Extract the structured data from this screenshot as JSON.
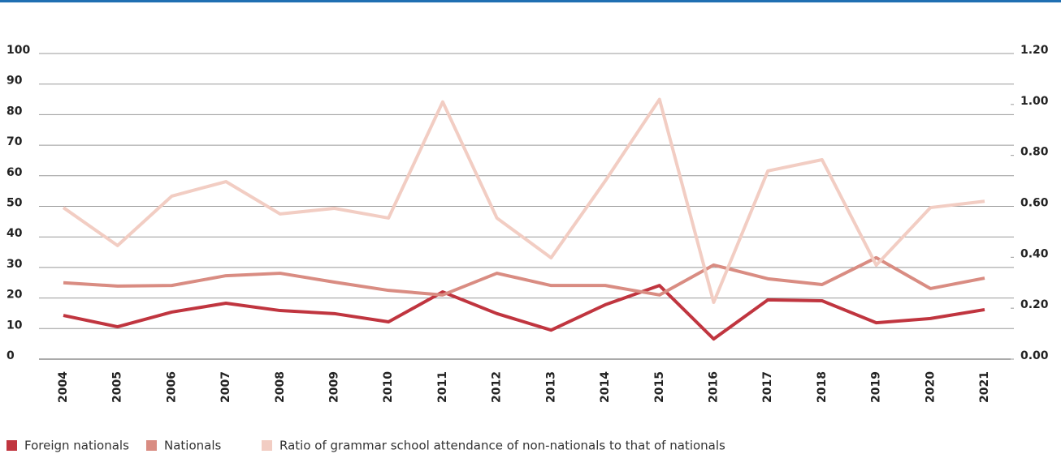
{
  "chart_data": {
    "type": "line",
    "categories": [
      "2004",
      "2005",
      "2006",
      "2007",
      "2008",
      "2009",
      "2010",
      "2011",
      "2012",
      "2013",
      "2014",
      "2015",
      "2016",
      "2017",
      "2018",
      "2019",
      "2020",
      "2021"
    ],
    "series": [
      {
        "name": "Foreign nationals",
        "color": "#c0353f",
        "values": [
          14.3,
          10.6,
          15.4,
          18.3,
          15.9,
          14.9,
          12.2,
          22.0,
          14.9,
          9.5,
          17.8,
          24.1,
          6.6,
          19.4,
          19.1,
          11.9,
          13.3,
          16.2
        ]
      },
      {
        "name": "Nationals",
        "color": "#d98c82",
        "values": [
          25.0,
          23.9,
          24.1,
          27.3,
          28.1,
          25.2,
          22.5,
          21.0,
          28.1,
          24.1,
          24.1,
          21.0,
          30.8,
          26.3,
          24.4,
          33.2,
          23.1,
          26.5
        ]
      },
      {
        "name": "Ratio of grammar school attendance of non-nationals to that of nationals",
        "color": "#f2cdc3",
        "axis": "y2",
        "values": [
          0.595,
          0.446,
          0.64,
          0.697,
          0.57,
          0.592,
          0.554,
          1.01,
          0.554,
          0.398,
          0.7,
          1.02,
          0.223,
          0.739,
          0.783,
          0.369,
          0.595,
          0.62
        ]
      }
    ],
    "ylim": [
      0,
      100
    ],
    "yticks": [
      0,
      10,
      20,
      30,
      40,
      50,
      60,
      70,
      80,
      90,
      100
    ],
    "y2lim": [
      0,
      1.2
    ],
    "y2ticks": [
      {
        "value": 0,
        "label": "0.00"
      },
      {
        "value": 0.2,
        "label": "0.20"
      },
      {
        "value": 0.4,
        "label": "0.40"
      },
      {
        "value": 0.6,
        "label": "0.60"
      },
      {
        "value": 0.8,
        "label": "0.80"
      },
      {
        "value": 1.0,
        "label": "1.00"
      },
      {
        "value": 1.2,
        "label": "1.20"
      }
    ],
    "grid": true,
    "legend": "bottom-left"
  }
}
